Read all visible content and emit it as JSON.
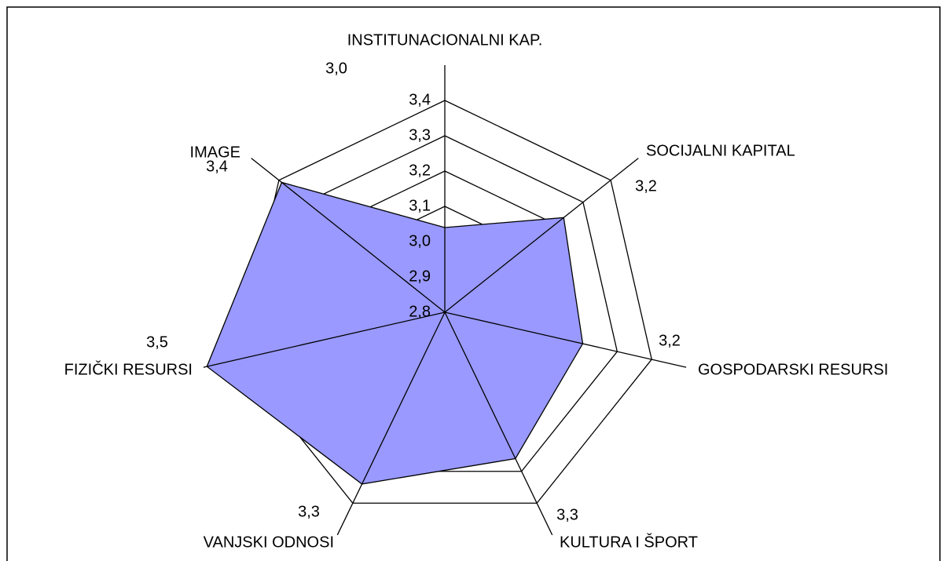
{
  "chart_data": {
    "type": "radar",
    "categories": [
      "INSTITUNACIONALNI  KAP.",
      "SOCIJALNI KAPITAL",
      "GOSPODARSKI RESURSI",
      "KULTURA I ŠPORT",
      "VANJSKI ODNOSI",
      "FIZIČKI RESURSI",
      "IMAGE"
    ],
    "values": [
      3.04,
      3.23,
      3.2,
      3.26,
      3.34,
      3.49,
      3.39
    ],
    "value_labels": [
      "3,0",
      "3,2",
      "3,2",
      "3,3",
      "3,3",
      "3,5",
      "3,4"
    ],
    "color": "#9999ff",
    "ylim": [
      2.8,
      3.5
    ],
    "yticks": [
      {
        "value": 2.8,
        "label": "2,8"
      },
      {
        "value": 2.9,
        "label": "2,9"
      },
      {
        "value": 3.0,
        "label": "3,0"
      },
      {
        "value": 3.1,
        "label": "3,1"
      },
      {
        "value": 3.2,
        "label": "3,2"
      },
      {
        "value": 3.3,
        "label": "3,3"
      },
      {
        "value": 3.4,
        "label": "3,4"
      }
    ],
    "grid": true
  }
}
